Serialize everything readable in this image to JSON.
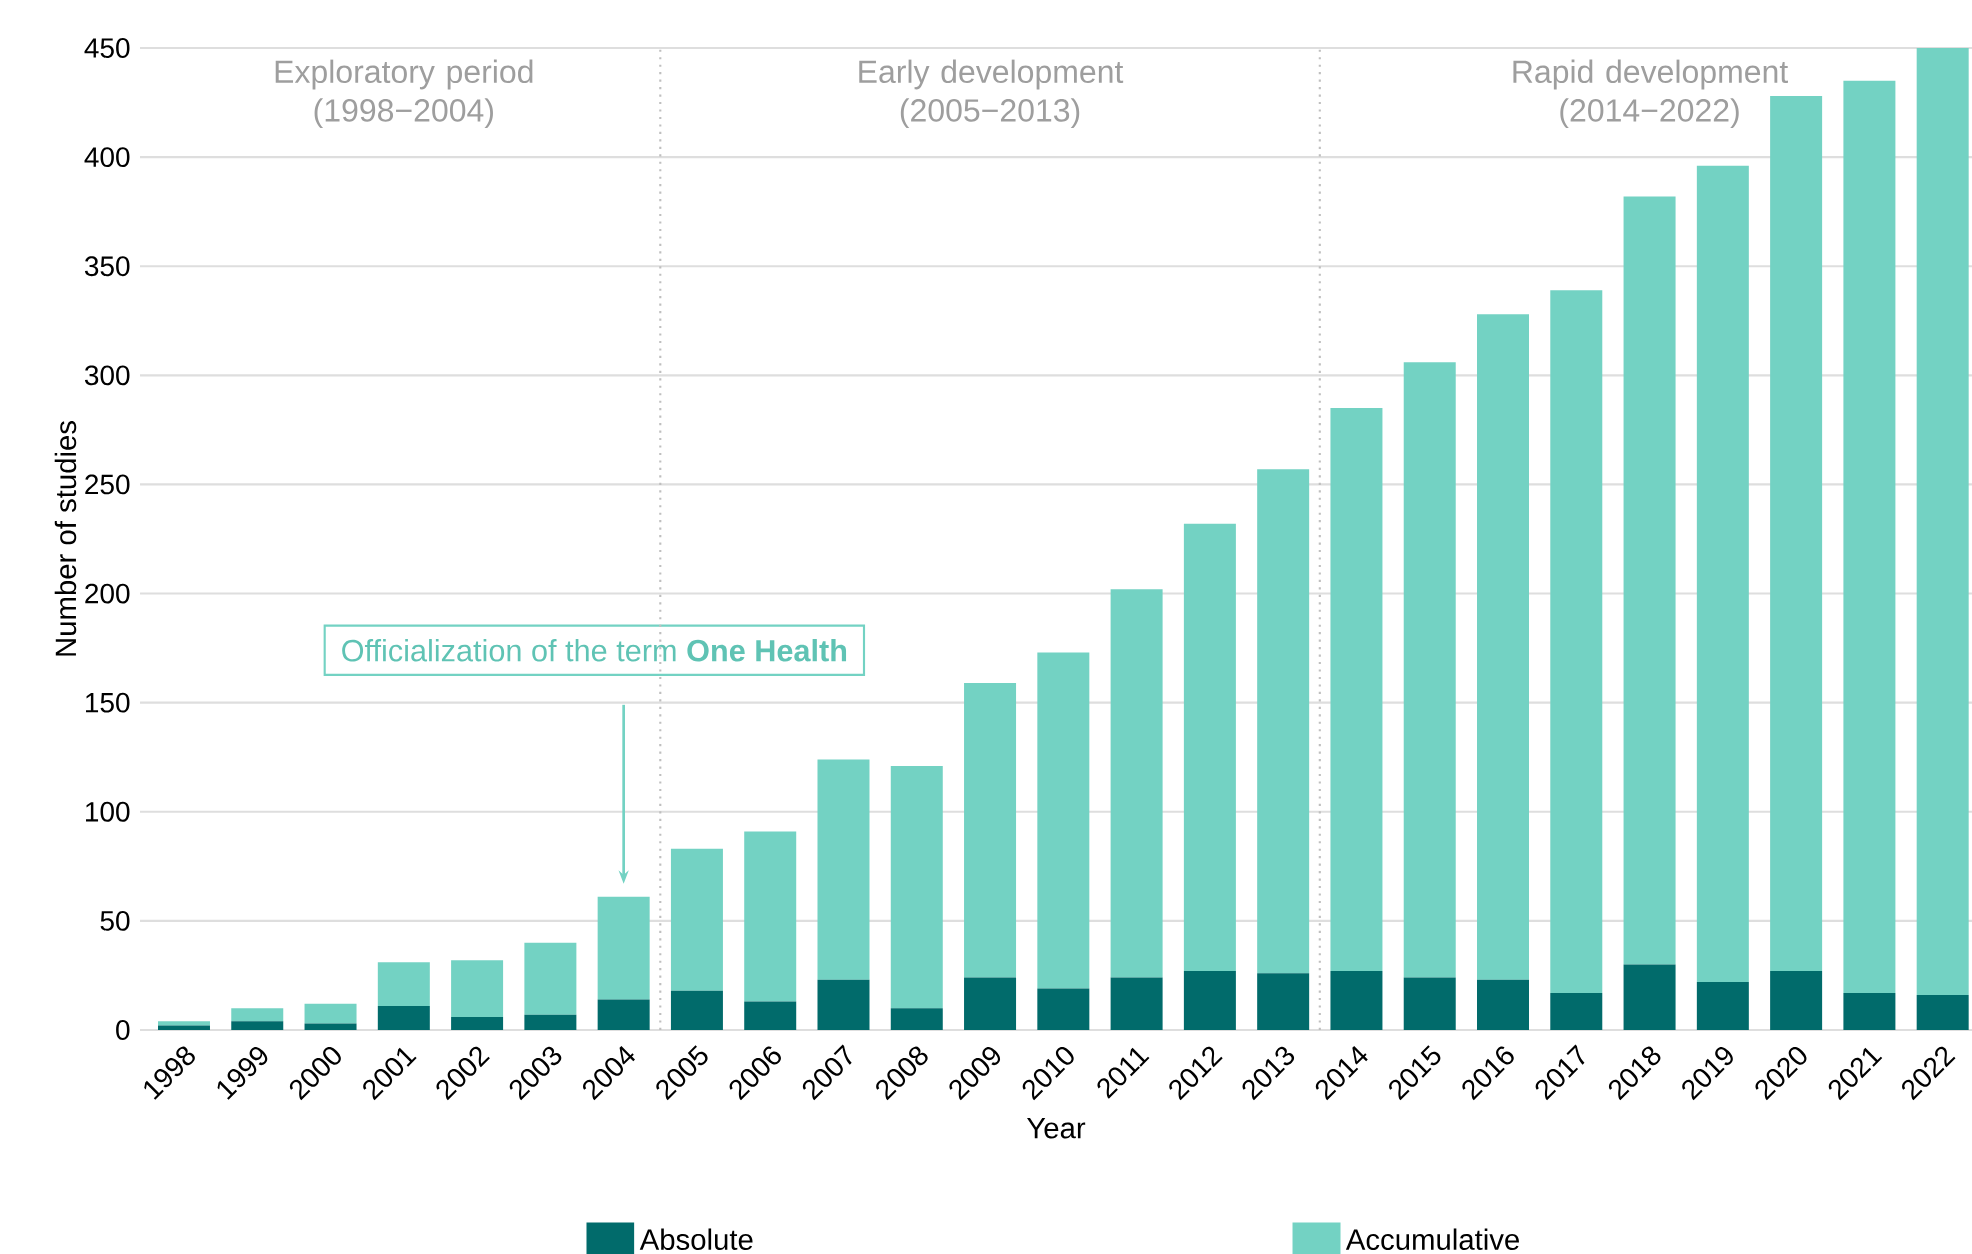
{
  "chart_data": {
    "type": "bar",
    "xlabel": "Year",
    "ylabel": "Number of studies",
    "stacked": true,
    "categories": [
      "1998",
      "1999",
      "2000",
      "2001",
      "2002",
      "2003",
      "2004",
      "2005",
      "2006",
      "2007",
      "2008",
      "2009",
      "2010",
      "2011",
      "2012",
      "2013",
      "2014",
      "2015",
      "2016",
      "2017",
      "2018",
      "2019",
      "2020",
      "2021",
      "2022"
    ],
    "series": [
      {
        "name": "Absolute",
        "color": "#016b6b",
        "values": [
          2,
          4,
          3,
          11,
          6,
          7,
          14,
          18,
          13,
          23,
          10,
          24,
          19,
          24,
          27,
          26,
          27,
          24,
          23,
          17,
          30,
          22,
          27,
          17,
          16
        ]
      },
      {
        "name": "Accumulative",
        "color": "#73d2c3",
        "values": [
          2,
          6,
          9,
          20,
          26,
          33,
          47,
          65,
          78,
          101,
          111,
          135,
          154,
          178,
          205,
          231,
          258,
          282,
          305,
          322,
          352,
          374,
          401,
          418,
          434
        ]
      }
    ],
    "ylim": [
      0,
      450
    ],
    "yticks": [
      0,
      50,
      100,
      150,
      200,
      250,
      300,
      350,
      400,
      450
    ],
    "grid": "y",
    "legend": "bottom",
    "annotations": [
      "Exploratory period (1998−2004)",
      "Early development (2005−2013)",
      "Rapid development (2014−2022)",
      "Officialization of the term **One Health**"
    ]
  }
}
